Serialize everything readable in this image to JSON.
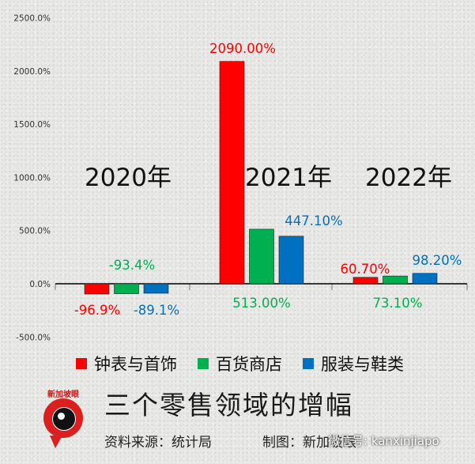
{
  "chart_data": {
    "type": "bar",
    "title": "",
    "xlabel": "",
    "ylabel": "",
    "ylim": [
      -500,
      2500
    ],
    "yticks": [
      -500,
      0,
      500,
      1000,
      1500,
      2000,
      2500
    ],
    "ytick_labels": [
      "-500.0%",
      "0.0%",
      "500.0%",
      "1000.0%",
      "1500.0%",
      "2000.0%",
      "2500.0%"
    ],
    "grid": false,
    "legend_position": "bottom",
    "categories": [
      "2020年",
      "2021年",
      "2022年"
    ],
    "series": [
      {
        "name": "钟表与首饰",
        "color": "#ff0000",
        "values": [
          -96.9,
          2090.0,
          60.7
        ],
        "labels": [
          "-96.9%",
          "2090.00%",
          "60.70%"
        ]
      },
      {
        "name": "百货商店",
        "color": "#00b050",
        "values": [
          -93.4,
          513.0,
          73.1
        ],
        "labels": [
          "-93.4%",
          "513.00%",
          "73.10%"
        ]
      },
      {
        "name": "服装与鞋类",
        "color": "#0070c0",
        "values": [
          -89.1,
          447.1,
          98.2
        ],
        "labels": [
          "-89.1%",
          "447.10%",
          "98.20%"
        ]
      }
    ]
  },
  "footer": {
    "title": "三个零售领域的增幅",
    "source": "资料来源：统计局",
    "credit": "制图：新加坡眼",
    "brand": "新加坡眼",
    "watermark": "微信号: kanxinjiapo"
  }
}
